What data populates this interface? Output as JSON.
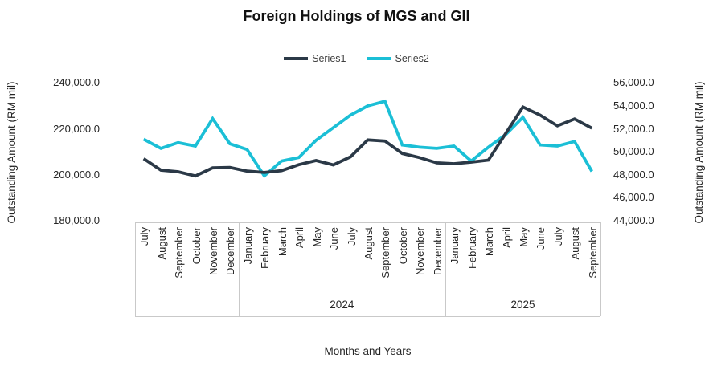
{
  "title": "Foreign Holdings of MGS and GII",
  "legend": {
    "items": [
      {
        "label": "Series1",
        "color": "#2b3947"
      },
      {
        "label": "Series2",
        "color": "#1bbfd6"
      }
    ]
  },
  "left_axis": {
    "title": "Outstanding Amount (RM mil)",
    "ticks": [
      "240,000.0",
      "220,000.0",
      "200,000.0",
      "180,000.0"
    ]
  },
  "right_axis": {
    "title": "Outstanding Amount (RM mil)",
    "ticks": [
      "56,000.0",
      "54,000.0",
      "52,000.0",
      "50,000.0",
      "48,000.0",
      "46,000.0",
      "44,000.0"
    ]
  },
  "x_axis": {
    "title": "Months and Years"
  },
  "chart_data": {
    "type": "line",
    "title": "Foreign Holdings of MGS and GII",
    "xlabel": "Months and Years",
    "ylabel_left": "Outstanding Amount (RM mil)",
    "ylabel_right": "Outstanding Amount (RM mil)",
    "legend_position": "top",
    "grid": false,
    "categories": [
      "July",
      "August",
      "September",
      "October",
      "November",
      "December",
      "January",
      "February",
      "March",
      "April",
      "May",
      "June",
      "July",
      "August",
      "September",
      "October",
      "November",
      "December",
      "January",
      "February",
      "March",
      "April",
      "May",
      "June",
      "July",
      "August",
      "September"
    ],
    "year_groups": [
      {
        "label": "",
        "span": 6
      },
      {
        "label": "2024",
        "span": 12
      },
      {
        "label": "2025",
        "span": 9
      }
    ],
    "left_ylim": [
      180000,
      240000
    ],
    "right_ylim": [
      44000,
      56000
    ],
    "series": [
      {
        "name": "Series1",
        "axis": "left",
        "color": "#2b3947",
        "values": [
          207000,
          202000,
          201300,
          199500,
          203000,
          203200,
          201600,
          201000,
          201800,
          204400,
          206200,
          204300,
          207800,
          215200,
          214700,
          209300,
          207500,
          205200,
          204800,
          205500,
          206400,
          218000,
          229500,
          226000,
          221300,
          224300,
          220300
        ]
      },
      {
        "name": "Series2",
        "axis": "right",
        "color": "#1bbfd6",
        "values": [
          51100,
          50300,
          50800,
          50500,
          52900,
          50700,
          50200,
          47900,
          49200,
          49500,
          51000,
          52100,
          53200,
          54000,
          54400,
          50600,
          50400,
          50300,
          50500,
          49200,
          50400,
          51500,
          53000,
          50600,
          50500,
          50900,
          48300
        ]
      }
    ]
  }
}
